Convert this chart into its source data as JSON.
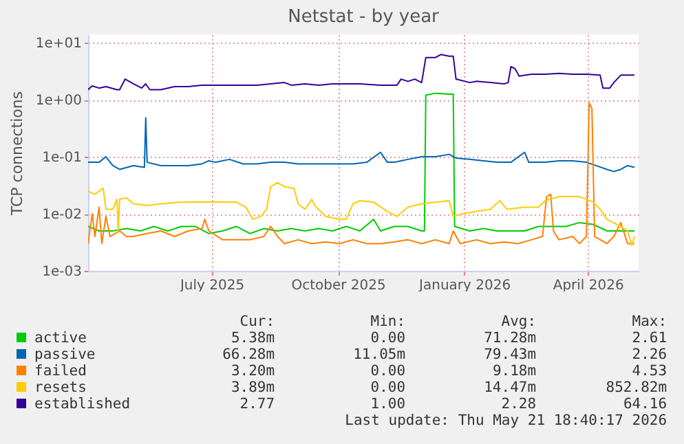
{
  "chart_data": {
    "type": "line",
    "title": "Netstat - by year",
    "ylabel": "TCP connections",
    "log": "y",
    "grid": true,
    "legend": "bottom",
    "xlim": [
      "2025-04-02",
      "2026-05-08"
    ],
    "xticks": [
      {
        "value": "2025-07-01",
        "label": "July 2025"
      },
      {
        "value": "2025-10-01",
        "label": "October 2025"
      },
      {
        "value": "2026-01-01",
        "label": "January 2026"
      },
      {
        "value": "2026-04-01",
        "label": "April 2026"
      }
    ],
    "ylim": [
      0.001,
      14
    ],
    "yticks": [
      {
        "value": 0.001,
        "label": "1e-03"
      },
      {
        "value": 0.01,
        "label": "1e-02"
      },
      {
        "value": 0.1,
        "label": "1e-01"
      },
      {
        "value": 1,
        "label": "1e+00"
      },
      {
        "value": 10,
        "label": "1e+01"
      }
    ],
    "series": [
      {
        "name": "active",
        "color": "#00cc00",
        "x": [
          "2025-04-02",
          "2025-04-10",
          "2025-04-20",
          "2025-04-30",
          "2025-05-10",
          "2025-05-20",
          "2025-05-30",
          "2025-06-09",
          "2025-06-19",
          "2025-06-29",
          "2025-07-09",
          "2025-07-19",
          "2025-07-29",
          "2025-08-08",
          "2025-08-18",
          "2025-08-28",
          "2025-09-07",
          "2025-09-17",
          "2025-09-27",
          "2025-10-07",
          "2025-10-17",
          "2025-10-27",
          "2025-11-01",
          "2025-11-11",
          "2025-11-21",
          "2025-12-01",
          "2025-12-03",
          "2025-12-04",
          "2025-12-11",
          "2025-12-21",
          "2025-12-24",
          "2025-12-25",
          "2026-01-05",
          "2026-01-15",
          "2026-01-25",
          "2026-02-04",
          "2026-02-14",
          "2026-02-24",
          "2026-03-06",
          "2026-03-16",
          "2026-03-26",
          "2026-04-05",
          "2026-04-15",
          "2026-04-25",
          "2026-05-05"
        ],
        "values": [
          0.006,
          0.005,
          0.005,
          0.0055,
          0.005,
          0.006,
          0.005,
          0.006,
          0.006,
          0.0045,
          0.005,
          0.006,
          0.0045,
          0.0055,
          0.005,
          0.0055,
          0.005,
          0.0055,
          0.005,
          0.006,
          0.005,
          0.008,
          0.005,
          0.006,
          0.006,
          0.005,
          0.005,
          1.2,
          1.3,
          1.25,
          1.25,
          0.006,
          0.005,
          0.0055,
          0.005,
          0.005,
          0.005,
          0.006,
          0.006,
          0.006,
          0.007,
          0.0065,
          0.005,
          0.005,
          0.005
        ]
      },
      {
        "name": "passive",
        "color": "#0066b3",
        "x": [
          "2025-04-02",
          "2025-04-10",
          "2025-04-15",
          "2025-04-20",
          "2025-04-25",
          "2025-05-05",
          "2025-05-13",
          "2025-05-14",
          "2025-05-15",
          "2025-05-25",
          "2025-06-04",
          "2025-06-14",
          "2025-06-24",
          "2025-06-29",
          "2025-07-04",
          "2025-07-14",
          "2025-07-24",
          "2025-08-03",
          "2025-08-13",
          "2025-08-23",
          "2025-09-02",
          "2025-09-12",
          "2025-09-22",
          "2025-10-02",
          "2025-10-12",
          "2025-10-22",
          "2025-11-01",
          "2025-11-06",
          "2025-11-11",
          "2025-11-16",
          "2025-11-21",
          "2025-12-01",
          "2025-12-11",
          "2025-12-21",
          "2025-12-26",
          "2026-01-05",
          "2026-01-15",
          "2026-01-25",
          "2026-02-04",
          "2026-02-14",
          "2026-02-17",
          "2026-03-01",
          "2026-03-11",
          "2026-03-21",
          "2026-03-31",
          "2026-04-07",
          "2026-04-15",
          "2026-04-20",
          "2026-04-25",
          "2026-04-30",
          "2026-05-05"
        ],
        "values": [
          0.08,
          0.08,
          0.1,
          0.07,
          0.06,
          0.07,
          0.065,
          0.48,
          0.08,
          0.07,
          0.07,
          0.07,
          0.075,
          0.085,
          0.08,
          0.09,
          0.075,
          0.075,
          0.08,
          0.08,
          0.075,
          0.075,
          0.075,
          0.075,
          0.075,
          0.08,
          0.12,
          0.08,
          0.08,
          0.085,
          0.09,
          0.1,
          0.1,
          0.11,
          0.095,
          0.09,
          0.085,
          0.08,
          0.08,
          0.12,
          0.08,
          0.08,
          0.085,
          0.085,
          0.08,
          0.07,
          0.06,
          0.055,
          0.06,
          0.07,
          0.065
        ]
      },
      {
        "name": "failed",
        "color": "#ff8000",
        "x": [
          "2025-04-02",
          "2025-04-05",
          "2025-04-07",
          "2025-04-10",
          "2025-04-12",
          "2025-04-15",
          "2025-04-18",
          "2025-04-25",
          "2025-04-30",
          "2025-05-05",
          "2025-05-15",
          "2025-05-25",
          "2025-06-04",
          "2025-06-14",
          "2025-06-24",
          "2025-06-26",
          "2025-06-29",
          "2025-07-09",
          "2025-07-19",
          "2025-07-29",
          "2025-08-08",
          "2025-08-13",
          "2025-08-18",
          "2025-08-23",
          "2025-09-02",
          "2025-09-12",
          "2025-09-22",
          "2025-10-02",
          "2025-10-12",
          "2025-10-22",
          "2025-11-01",
          "2025-11-11",
          "2025-11-21",
          "2025-12-01",
          "2025-12-11",
          "2025-12-21",
          "2025-12-24",
          "2025-12-29",
          "2026-01-10",
          "2026-01-20",
          "2026-01-30",
          "2026-02-09",
          "2026-02-19",
          "2026-02-27",
          "2026-03-02",
          "2026-03-05",
          "2026-03-07",
          "2026-03-11",
          "2026-03-21",
          "2026-03-26",
          "2026-03-31",
          "2026-04-02",
          "2026-04-04",
          "2026-04-06",
          "2026-04-15",
          "2026-04-20",
          "2026-04-25",
          "2026-04-30",
          "2026-05-05"
        ],
        "values": [
          0.003,
          0.01,
          0.004,
          0.013,
          0.003,
          0.009,
          0.004,
          0.005,
          0.004,
          0.004,
          0.0045,
          0.005,
          0.004,
          0.005,
          0.0055,
          0.008,
          0.005,
          0.0035,
          0.0035,
          0.0035,
          0.004,
          0.006,
          0.004,
          0.003,
          0.0035,
          0.003,
          0.0032,
          0.003,
          0.0035,
          0.003,
          0.003,
          0.0032,
          0.0035,
          0.003,
          0.0035,
          0.003,
          0.005,
          0.003,
          0.0035,
          0.003,
          0.0032,
          0.003,
          0.0035,
          0.004,
          0.02,
          0.022,
          0.005,
          0.0035,
          0.004,
          0.003,
          0.004,
          0.88,
          0.7,
          0.004,
          0.003,
          0.004,
          0.007,
          0.003,
          0.003
        ]
      },
      {
        "name": "resets",
        "color": "#ffcc00",
        "x": [
          "2025-04-02",
          "2025-04-07",
          "2025-04-13",
          "2025-04-15",
          "2025-04-20",
          "2025-04-23",
          "2025-04-24",
          "2025-04-25",
          "2025-04-30",
          "2025-05-05",
          "2025-05-15",
          "2025-05-25",
          "2025-06-09",
          "2025-06-19",
          "2025-07-04",
          "2025-07-19",
          "2025-07-26",
          "2025-07-31",
          "2025-08-06",
          "2025-08-10",
          "2025-08-13",
          "2025-08-18",
          "2025-08-23",
          "2025-08-30",
          "2025-09-02",
          "2025-09-07",
          "2025-09-12",
          "2025-09-14",
          "2025-09-22",
          "2025-10-02",
          "2025-10-07",
          "2025-10-12",
          "2025-10-17",
          "2025-10-27",
          "2025-11-06",
          "2025-11-13",
          "2025-11-21",
          "2025-12-01",
          "2025-12-21",
          "2025-12-24",
          "2025-12-31",
          "2026-01-10",
          "2026-01-20",
          "2026-01-27",
          "2026-02-01",
          "2026-02-14",
          "2026-02-24",
          "2026-03-01",
          "2026-03-11",
          "2026-03-21",
          "2026-03-26",
          "2026-04-05",
          "2026-04-10",
          "2026-04-15",
          "2026-04-25",
          "2026-04-30",
          "2026-05-03",
          "2026-05-05"
        ],
        "values": [
          0.025,
          0.022,
          0.028,
          0.012,
          0.012,
          0.018,
          0.005,
          0.018,
          0.019,
          0.015,
          0.014,
          0.015,
          0.016,
          0.016,
          0.016,
          0.016,
          0.013,
          0.008,
          0.009,
          0.012,
          0.03,
          0.035,
          0.03,
          0.028,
          0.015,
          0.012,
          0.018,
          0.014,
          0.009,
          0.008,
          0.008,
          0.015,
          0.017,
          0.016,
          0.011,
          0.009,
          0.013,
          0.015,
          0.017,
          0.009,
          0.01,
          0.011,
          0.012,
          0.017,
          0.012,
          0.013,
          0.013,
          0.017,
          0.02,
          0.02,
          0.02,
          0.016,
          0.012,
          0.008,
          0.006,
          0.005,
          0.0028,
          0.004
        ]
      },
      {
        "name": "established",
        "color": "#330099",
        "x": [
          "2025-04-02",
          "2025-04-05",
          "2025-04-10",
          "2025-04-15",
          "2025-04-23",
          "2025-04-25",
          "2025-04-29",
          "2025-05-05",
          "2025-05-11",
          "2025-05-14",
          "2025-05-17",
          "2025-05-25",
          "2025-06-04",
          "2025-06-14",
          "2025-06-24",
          "2025-07-04",
          "2025-07-14",
          "2025-07-24",
          "2025-08-03",
          "2025-08-13",
          "2025-08-23",
          "2025-08-28",
          "2025-09-07",
          "2025-09-17",
          "2025-09-27",
          "2025-10-07",
          "2025-10-17",
          "2025-11-01",
          "2025-11-13",
          "2025-11-16",
          "2025-11-21",
          "2025-11-26",
          "2025-12-01",
          "2025-12-04",
          "2025-12-11",
          "2025-12-15",
          "2025-12-21",
          "2025-12-24",
          "2025-12-26",
          "2026-01-05",
          "2026-01-10",
          "2026-01-20",
          "2026-01-30",
          "2026-02-02",
          "2026-02-04",
          "2026-02-07",
          "2026-02-10",
          "2026-02-19",
          "2026-03-01",
          "2026-03-11",
          "2026-03-21",
          "2026-03-31",
          "2026-04-10",
          "2026-04-12",
          "2026-04-17",
          "2026-04-20",
          "2026-04-25",
          "2026-05-05"
        ],
        "values": [
          1.5,
          1.75,
          1.6,
          1.7,
          1.5,
          1.5,
          2.3,
          1.9,
          1.6,
          1.9,
          1.5,
          1.5,
          1.7,
          1.7,
          1.8,
          1.8,
          1.8,
          1.8,
          1.8,
          1.9,
          2.0,
          1.8,
          1.9,
          1.8,
          1.9,
          1.9,
          1.9,
          1.8,
          1.8,
          2.3,
          2.1,
          2.3,
          2.0,
          5.5,
          5.5,
          6.2,
          5.8,
          5.8,
          2.3,
          2.0,
          2.1,
          2.0,
          1.9,
          2.0,
          3.8,
          3.5,
          2.6,
          2.8,
          2.8,
          2.9,
          2.8,
          2.8,
          2.7,
          1.6,
          1.6,
          2.0,
          2.7,
          2.7
        ]
      }
    ],
    "annotations": [
      "Cur:",
      "Min:",
      "Avg:",
      "Max:",
      "5.38m",
      "0.00",
      "71.28m",
      "2.61",
      "66.28m",
      "11.05m",
      "79.43m",
      "2.26",
      "3.20m",
      "0.00",
      "9.18m",
      "4.53",
      "3.89m",
      "0.00",
      "14.47m",
      "852.82m",
      "2.77",
      "1.00",
      "2.28",
      "64.16",
      "Last update: Thu May 21 18:40:17 2026"
    ]
  }
}
